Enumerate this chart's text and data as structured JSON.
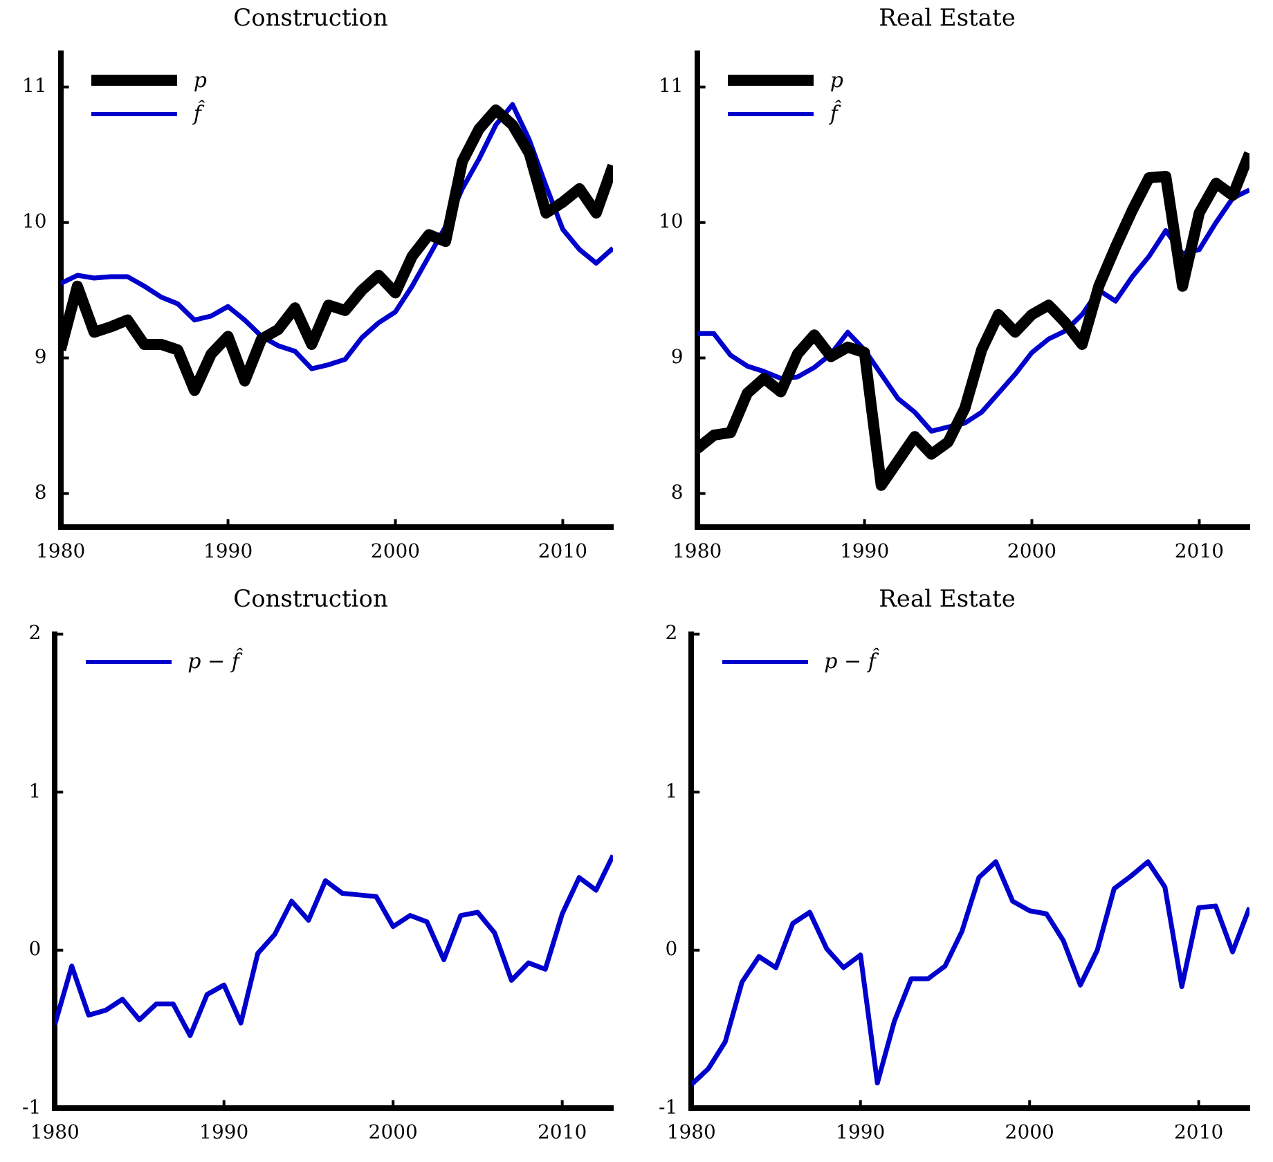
{
  "chart_data": [
    {
      "type": "line",
      "title": "Construction",
      "x": [
        1980,
        1981,
        1982,
        1983,
        1984,
        1985,
        1986,
        1987,
        1988,
        1989,
        1990,
        1991,
        1992,
        1993,
        1994,
        1995,
        1996,
        1997,
        1998,
        1999,
        2000,
        2001,
        2002,
        2003,
        2004,
        2005,
        2006,
        2007,
        2008,
        2009,
        2010,
        2011,
        2012,
        2013
      ],
      "xlim": [
        1980,
        2013
      ],
      "xticks": [
        1980,
        1990,
        2000,
        2010
      ],
      "ylim": [
        7.75,
        11.25
      ],
      "yticks": [
        8,
        9,
        10,
        11
      ],
      "grid": false,
      "legend": "top left",
      "marker": "none",
      "line_style": "solid",
      "series": [
        {
          "name": "p",
          "color": "#000000",
          "values": [
            9.06,
            9.53,
            9.19,
            9.23,
            9.28,
            9.1,
            9.1,
            9.06,
            8.76,
            9.03,
            9.16,
            8.83,
            9.14,
            9.21,
            9.37,
            9.1,
            9.39,
            9.35,
            9.5,
            9.61,
            9.48,
            9.75,
            9.91,
            9.86,
            10.45,
            10.69,
            10.83,
            10.72,
            10.51,
            10.07,
            10.15,
            10.25,
            10.07,
            10.42
          ]
        },
        {
          "name": "f̂",
          "color": "#0000cc",
          "values": [
            9.55,
            9.61,
            9.59,
            9.6,
            9.6,
            9.53,
            9.45,
            9.4,
            9.28,
            9.31,
            9.38,
            9.28,
            9.16,
            9.09,
            9.05,
            8.92,
            8.95,
            8.99,
            9.15,
            9.26,
            9.34,
            9.53,
            9.75,
            9.97,
            10.25,
            10.47,
            10.72,
            10.87,
            10.61,
            10.27,
            9.95,
            9.8,
            9.7,
            9.81
          ]
        }
      ]
    },
    {
      "type": "line",
      "title": "Real Estate",
      "x": [
        1980,
        1981,
        1982,
        1983,
        1984,
        1985,
        1986,
        1987,
        1988,
        1989,
        1990,
        1991,
        1992,
        1993,
        1994,
        1995,
        1996,
        1997,
        1998,
        1999,
        2000,
        2001,
        2002,
        2003,
        2004,
        2005,
        2006,
        2007,
        2008,
        2009,
        2010,
        2011,
        2012,
        2013
      ],
      "xlim": [
        1980,
        2013
      ],
      "xticks": [
        1980,
        1990,
        2000,
        2010
      ],
      "ylim": [
        7.75,
        11.25
      ],
      "yticks": [
        8,
        9,
        10,
        11
      ],
      "grid": false,
      "legend": "top left",
      "marker": "none",
      "line_style": "solid",
      "series": [
        {
          "name": "p",
          "color": "#000000",
          "values": [
            8.33,
            8.43,
            8.45,
            8.74,
            8.85,
            8.75,
            9.03,
            9.17,
            9.01,
            9.08,
            9.04,
            8.06,
            8.24,
            8.42,
            8.29,
            8.38,
            8.63,
            9.06,
            9.32,
            9.19,
            9.32,
            9.39,
            9.26,
            9.1,
            9.53,
            9.82,
            10.09,
            10.33,
            10.34,
            9.53,
            10.07,
            10.29,
            10.2,
            10.51
          ]
        },
        {
          "name": "f̂",
          "color": "#0000cc",
          "values": [
            9.18,
            9.18,
            9.02,
            8.94,
            8.9,
            8.85,
            8.86,
            8.93,
            9.03,
            9.19,
            9.06,
            8.88,
            8.7,
            8.6,
            8.46,
            8.49,
            8.52,
            8.6,
            8.74,
            8.88,
            9.04,
            9.14,
            9.2,
            9.32,
            9.5,
            9.42,
            9.6,
            9.75,
            9.94,
            9.77,
            9.8,
            10.0,
            10.18,
            10.24
          ]
        }
      ]
    },
    {
      "type": "line",
      "title": "Construction",
      "x": [
        1980,
        1981,
        1982,
        1983,
        1984,
        1985,
        1986,
        1987,
        1988,
        1989,
        1990,
        1991,
        1992,
        1993,
        1994,
        1995,
        1996,
        1997,
        1998,
        1999,
        2000,
        2001,
        2002,
        2003,
        2004,
        2005,
        2006,
        2007,
        2008,
        2009,
        2010,
        2011,
        2012,
        2013
      ],
      "xlim": [
        1980,
        2013
      ],
      "xticks": [
        1980,
        1990,
        2000,
        2010
      ],
      "ylim": [
        -1,
        2
      ],
      "yticks": [
        -1,
        0,
        1,
        2
      ],
      "grid": false,
      "legend": "top left",
      "marker": "none",
      "line_style": "solid",
      "series": [
        {
          "name": "p − f̂",
          "color": "#0000cc",
          "values": [
            -0.47,
            -0.1,
            -0.41,
            -0.38,
            -0.31,
            -0.44,
            -0.34,
            -0.34,
            -0.54,
            -0.28,
            -0.22,
            -0.46,
            -0.02,
            0.1,
            0.31,
            0.19,
            0.44,
            0.36,
            0.35,
            0.34,
            0.15,
            0.22,
            0.18,
            -0.06,
            0.22,
            0.24,
            0.11,
            -0.19,
            -0.08,
            -0.12,
            0.23,
            0.46,
            0.38,
            0.6
          ]
        }
      ]
    },
    {
      "type": "line",
      "title": "Real Estate",
      "x": [
        1980,
        1981,
        1982,
        1983,
        1984,
        1985,
        1986,
        1987,
        1988,
        1989,
        1990,
        1991,
        1992,
        1993,
        1994,
        1995,
        1996,
        1997,
        1998,
        1999,
        2000,
        2001,
        2002,
        2003,
        2004,
        2005,
        2006,
        2007,
        2008,
        2009,
        2010,
        2011,
        2012,
        2013
      ],
      "xlim": [
        1980,
        2013
      ],
      "xticks": [
        1980,
        1990,
        2000,
        2010
      ],
      "ylim": [
        -1,
        2
      ],
      "yticks": [
        -1,
        0,
        1,
        2
      ],
      "grid": false,
      "legend": "top left",
      "marker": "none",
      "line_style": "solid",
      "series": [
        {
          "name": "p − f̂",
          "color": "#0000cc",
          "values": [
            -0.85,
            -0.75,
            -0.58,
            -0.2,
            -0.04,
            -0.11,
            0.17,
            0.24,
            0.01,
            -0.11,
            -0.03,
            -0.84,
            -0.45,
            -0.18,
            -0.18,
            -0.1,
            0.12,
            0.46,
            0.56,
            0.31,
            0.25,
            0.23,
            0.06,
            -0.22,
            0.0,
            0.39,
            0.47,
            0.56,
            0.4,
            -0.23,
            0.27,
            0.28,
            -0.01,
            0.27
          ]
        }
      ]
    }
  ]
}
